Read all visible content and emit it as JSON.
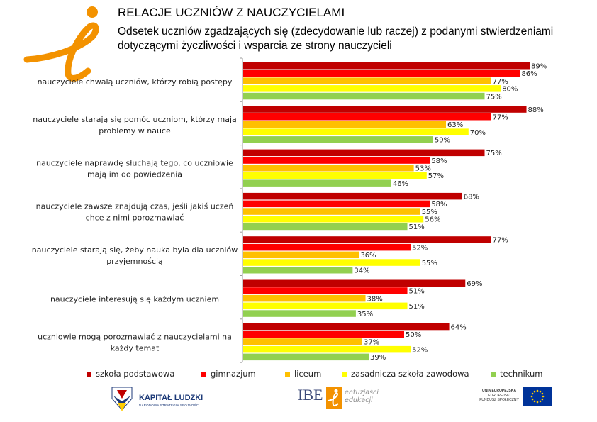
{
  "header": {
    "title": "RELACJE UCZNIÓW Z NAUCZYCIELAMI",
    "subtitle": "Odsetek uczniów zgadzających się (zdecydowanie lub raczej) z podanymi stwierdzeniami dotyczącymi życzliwości i wsparcia ze strony nauczycieli"
  },
  "chart_data": {
    "type": "bar",
    "orientation": "horizontal",
    "title": "RELACJE UCZNIÓW Z NAUCZYCIELAMI",
    "subtitle": "Odsetek uczniów zgadzających się (zdecydowanie lub raczej) z podanymi stwierdzeniami dotyczącymi życzliwości i wsparcia ze strony nauczycieli",
    "xlim": [
      0,
      100
    ],
    "unit": "%",
    "legend_position": "bottom",
    "categories": [
      "nauczyciele chwalą uczniów, którzy robią postępy",
      "nauczyciele starają się pomóc uczniom, którzy mają problemy w nauce",
      "nauczyciele naprawdę słuchają tego, co uczniowie mają im do powiedzenia",
      "nauczyciele zawsze znajdują czas, jeśli jakiś uczeń chce z nimi porozmawiać",
      "nauczyciele starają się, żeby nauka była dla uczniów przyjemnością",
      "nauczyciele interesują się każdym uczniem",
      "uczniowie mogą porozmawiać z nauczycielami na każdy temat"
    ],
    "category_lines": [
      [
        "nauczyciele chwalą uczniów, którzy robią postępy"
      ],
      [
        "nauczyciele starają się pomóc uczniom, którzy mają",
        "problemy w nauce"
      ],
      [
        "nauczyciele naprawdę słuchają tego, co uczniowie",
        "mają im do powiedzenia"
      ],
      [
        "nauczyciele zawsze znajdują czas, jeśli jakiś uczeń",
        "chce z nimi porozmawiać"
      ],
      [
        "nauczyciele starają się, żeby nauka była dla uczniów",
        "przyjemnością"
      ],
      [
        "nauczyciele interesują się każdym uczniem"
      ],
      [
        "uczniowie mogą porozmawiać z nauczycielami na",
        "każdy temat"
      ]
    ],
    "series": [
      {
        "name": "szkoła podstawowa",
        "color": "#c00000",
        "values": [
          89,
          88,
          75,
          68,
          77,
          69,
          64
        ]
      },
      {
        "name": "gimnazjum",
        "color": "#ff0000",
        "values": [
          86,
          77,
          58,
          58,
          52,
          51,
          50
        ]
      },
      {
        "name": "liceum",
        "color": "#ffc000",
        "values": [
          77,
          63,
          53,
          55,
          36,
          38,
          37
        ]
      },
      {
        "name": "zasadnicza szkoła zawodowa",
        "color": "#ffff00",
        "values": [
          80,
          70,
          57,
          56,
          55,
          51,
          52
        ]
      },
      {
        "name": "technikum",
        "color": "#92d050",
        "values": [
          75,
          59,
          46,
          51,
          34,
          35,
          39
        ]
      }
    ]
  },
  "footer": {
    "kapital_name": "KAPITAŁ LUDZKI",
    "kapital_sub": "NARODOWA STRATEGIA SPÓJNOŚCI",
    "ibe": "IBE",
    "ibe_tag_1": "entuzjaści",
    "ibe_tag_2": "edukacji",
    "eu_1": "UNIA EUROPEJSKA",
    "eu_2": "EUROPEJSKI",
    "eu_3": "FUNDUSZ SPOŁECZNY"
  },
  "colors": {
    "logo_orange": "#f39200",
    "eu_blue": "#003399",
    "eu_star": "#ffcc00",
    "kl_blue": "#1d3a78"
  }
}
